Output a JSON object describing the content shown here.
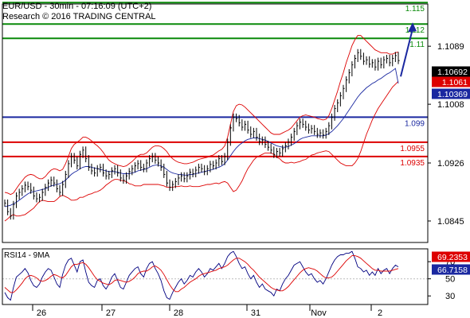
{
  "header": {
    "line1": "EUR/USD - 30min - 07:16:09 (UTC+2)",
    "line2": "Research © 2016 TRADING CENTRAL"
  },
  "colors": {
    "green": "#0a8a0a",
    "blue": "#1a28a0",
    "red": "#dd0000",
    "price": "#000000",
    "bollinger": "#dd0000",
    "ma": "#1a28a0",
    "rsi": "#000080",
    "rsi_ma": "#dd0000",
    "label_dark": "#000000",
    "label_red": "#dd0000",
    "label_blue": "#1a28a0"
  },
  "chart_data": {
    "type": "line",
    "title": "",
    "price_panel": {
      "ylim": [
        1.0815,
        1.1148
      ],
      "y_ticks": [
        1.0845,
        1.0926,
        1.1008,
        1.1089
      ],
      "levels": [
        {
          "value": 1.115,
          "label": "1.115",
          "color": "green"
        },
        {
          "value": 1.112,
          "label": "1.112",
          "color": "green"
        },
        {
          "value": 1.11,
          "label": "1.11",
          "color": "green"
        },
        {
          "value": 1.099,
          "label": "1.099",
          "color": "blue"
        },
        {
          "value": 1.0955,
          "label": "1.0955",
          "color": "red"
        },
        {
          "value": 1.0935,
          "label": "1.0935",
          "color": "red"
        }
      ],
      "current_labels": [
        {
          "value": 1.10692,
          "label": "1.10692",
          "style": "dark"
        },
        {
          "value": 1.1061,
          "label": "1.1061",
          "style": "red"
        },
        {
          "value": 1.10369,
          "label": "1.10369",
          "style": "blue"
        }
      ],
      "price": [
        1.087,
        1.0858,
        1.0852,
        1.0868,
        1.088,
        1.0885,
        1.089,
        1.0895,
        1.0893,
        1.0888,
        1.088,
        1.0876,
        1.0878,
        1.0885,
        1.0892,
        1.0898,
        1.0902,
        1.0898,
        1.089,
        1.0885,
        1.0896,
        1.091,
        1.0925,
        1.0935,
        1.093,
        1.0922,
        1.0938,
        1.0944,
        1.0932,
        1.092,
        1.0915,
        1.0912,
        1.0918,
        1.092,
        1.0912,
        1.0908,
        1.091,
        1.0915,
        1.0918,
        1.0912,
        1.0905,
        1.0902,
        1.0908,
        1.0914,
        1.0918,
        1.0922,
        1.0925,
        1.092,
        1.0918,
        1.0926,
        1.0932,
        1.0935,
        1.093,
        1.0926,
        1.092,
        1.091,
        1.0898,
        1.0892,
        1.0896,
        1.09,
        1.0905,
        1.0908,
        1.0904,
        1.0908,
        1.0913,
        1.0911,
        1.0916,
        1.092,
        1.0918,
        1.0914,
        1.0918,
        1.0924,
        1.0922,
        1.0926,
        1.0932,
        1.0928,
        1.0935,
        1.0955,
        1.0975,
        1.099,
        1.0988,
        1.0982,
        1.0976,
        1.098,
        1.0972,
        1.0966,
        1.097,
        1.0962,
        1.0956,
        1.0958,
        1.0952,
        1.0948,
        1.0944,
        1.0938,
        1.0942,
        1.094,
        1.0946,
        1.095,
        1.0955,
        1.0962,
        1.097,
        1.0978,
        1.0983,
        1.098,
        1.0976,
        1.0972,
        1.0974,
        1.097,
        1.0966,
        1.0968,
        1.0965,
        1.097,
        1.0978,
        1.099,
        1.1002,
        1.101,
        1.102,
        1.103,
        1.1042,
        1.1052,
        1.1063,
        1.1072,
        1.108,
        1.1075,
        1.1068,
        1.107,
        1.1064,
        1.1066,
        1.106,
        1.1068,
        1.1063,
        1.107,
        1.1072,
        1.1066,
        1.1072,
        1.1076,
        1.1069
      ],
      "projection": [
        [
          1.106,
          1.112
        ]
      ],
      "ma": [
        1.0865,
        1.0866,
        1.0867,
        1.0869,
        1.0871,
        1.0874,
        1.0877,
        1.088,
        1.0883,
        1.0885,
        1.0886,
        1.0887,
        1.0888,
        1.0889,
        1.089,
        1.0892,
        1.0894,
        1.0895,
        1.0896,
        1.0897,
        1.0899,
        1.0902,
        1.0906,
        1.091,
        1.0913,
        1.0915,
        1.0918,
        1.092,
        1.0921,
        1.0921,
        1.092,
        1.0919,
        1.0918,
        1.0917,
        1.0916,
        1.0915,
        1.0914,
        1.0914,
        1.0914,
        1.0913,
        1.0912,
        1.0911,
        1.0911,
        1.0911,
        1.0912,
        1.0913,
        1.0915,
        1.0916,
        1.0917,
        1.0918,
        1.092,
        1.0922,
        1.0923,
        1.0923,
        1.0922,
        1.092,
        1.0917,
        1.0914,
        1.0912,
        1.0911,
        1.091,
        1.091,
        1.0909,
        1.0909,
        1.091,
        1.091,
        1.0911,
        1.0912,
        1.0913,
        1.0914,
        1.0915,
        1.0916,
        1.0917,
        1.0919,
        1.092,
        1.0922,
        1.0925,
        1.093,
        1.0936,
        1.0942,
        1.0947,
        1.0951,
        1.0954,
        1.0957,
        1.0959,
        1.096,
        1.0961,
        1.0961,
        1.096,
        1.0959,
        1.0958,
        1.0956,
        1.0954,
        1.0952,
        1.095,
        1.0949,
        1.0948,
        1.0948,
        1.0949,
        1.0951,
        1.0953,
        1.0956,
        1.0959,
        1.0961,
        1.0962,
        1.0963,
        1.0964,
        1.0964,
        1.0964,
        1.0964,
        1.0964,
        1.0965,
        1.0967,
        1.097,
        1.0974,
        1.0978,
        1.0983,
        1.0988,
        1.0994,
        1.1,
        1.1006,
        1.1012,
        1.1018,
        1.1023,
        1.1027,
        1.1031,
        1.1034,
        1.1037,
        1.1039,
        1.1042,
        1.1044,
        1.1047,
        1.105,
        1.1052,
        1.1055,
        1.1058,
        1.1037
      ],
      "bb_upper": [
        1.0885,
        1.0884,
        1.0882,
        1.0884,
        1.089,
        1.0896,
        1.0901,
        1.0906,
        1.0909,
        1.091,
        1.0909,
        1.0906,
        1.0904,
        1.0904,
        1.0907,
        1.0912,
        1.0916,
        1.0918,
        1.0917,
        1.0915,
        1.0917,
        1.0925,
        1.0935,
        1.0946,
        1.0952,
        1.0955,
        1.0958,
        1.0962,
        1.0962,
        1.096,
        1.0957,
        1.0953,
        1.095,
        1.0946,
        1.0941,
        1.0935,
        1.093,
        1.0927,
        1.0925,
        1.0923,
        1.0922,
        1.0921,
        1.0922,
        1.0925,
        1.0928,
        1.0932,
        1.0936,
        1.0938,
        1.0938,
        1.094,
        1.0944,
        1.0948,
        1.095,
        1.095,
        1.0949,
        1.0946,
        1.0942,
        1.0936,
        1.0932,
        1.0929,
        1.0927,
        1.0926,
        1.0925,
        1.0925,
        1.0926,
        1.0927,
        1.0929,
        1.0931,
        1.0932,
        1.0933,
        1.0934,
        1.0936,
        1.0937,
        1.094,
        1.0943,
        1.0945,
        1.095,
        1.0962,
        1.098,
        1.0998,
        1.1006,
        1.1008,
        1.1007,
        1.1004,
        1.1,
        1.0996,
        1.0992,
        1.0988,
        1.0984,
        1.098,
        1.0976,
        1.0972,
        1.0968,
        1.0966,
        1.0966,
        1.0966,
        1.0968,
        1.097,
        1.0972,
        1.0975,
        1.098,
        1.0985,
        1.099,
        1.0992,
        1.0993,
        1.0992,
        1.0991,
        1.099,
        1.0988,
        1.0987,
        1.0986,
        1.0987,
        1.0992,
        1.1002,
        1.1014,
        1.1026,
        1.104,
        1.1052,
        1.1066,
        1.1078,
        1.109,
        1.1098,
        1.1104,
        1.1104,
        1.11,
        1.1096,
        1.1092,
        1.1088,
        1.1084,
        1.1082,
        1.108,
        1.108,
        1.108,
        1.1078,
        1.1078,
        1.108,
        1.1081
      ],
      "bb_lower": [
        1.0845,
        1.0848,
        1.0852,
        1.0854,
        1.0852,
        1.0852,
        1.0853,
        1.0854,
        1.0857,
        1.086,
        1.0863,
        1.0868,
        1.0872,
        1.0874,
        1.0873,
        1.0872,
        1.0872,
        1.0872,
        1.0875,
        1.0879,
        1.0881,
        1.0879,
        1.0877,
        1.0874,
        1.0874,
        1.0875,
        1.0878,
        1.0878,
        1.088,
        1.0882,
        1.0883,
        1.0885,
        1.0886,
        1.0888,
        1.0891,
        1.0895,
        1.0898,
        1.0901,
        1.0903,
        1.0903,
        1.0902,
        1.0901,
        1.09,
        1.0897,
        1.0896,
        1.0894,
        1.0894,
        1.0894,
        1.0896,
        1.0896,
        1.0896,
        1.0896,
        1.0896,
        1.0896,
        1.0895,
        1.0894,
        1.0892,
        1.0892,
        1.0892,
        1.0893,
        1.0893,
        1.0894,
        1.0893,
        1.0893,
        1.0894,
        1.0893,
        1.0893,
        1.0893,
        1.0894,
        1.0895,
        1.0896,
        1.0896,
        1.0897,
        1.0898,
        1.0897,
        1.0899,
        1.09,
        1.0898,
        1.0892,
        1.0886,
        1.0888,
        1.0894,
        1.0901,
        1.091,
        1.0918,
        1.0924,
        1.093,
        1.0934,
        1.0936,
        1.0938,
        1.094,
        1.094,
        1.094,
        1.0938,
        1.0934,
        1.0932,
        1.0928,
        1.0926,
        1.0926,
        1.0927,
        1.0926,
        1.0927,
        1.0928,
        1.093,
        1.0931,
        1.0934,
        1.0937,
        1.0938,
        1.094,
        1.0941,
        1.0942,
        1.0943,
        1.0942,
        1.0938,
        1.0934,
        1.093,
        1.0926,
        1.0924,
        1.0922,
        1.0922,
        1.0922,
        1.0926,
        1.0932,
        1.0942,
        1.0954,
        1.0966,
        1.0976,
        1.0986,
        1.0994,
        1.1002,
        1.1008,
        1.1014,
        1.102,
        1.1026,
        1.1032,
        1.1036,
        1.104
      ]
    },
    "rsi_panel": {
      "name": "RSI14 - 9MA",
      "ylim": [
        20,
        85
      ],
      "y_ticks": [
        30,
        50,
        70
      ],
      "current_labels": [
        {
          "value": 69.2353,
          "label": "69.2353",
          "style": "red"
        },
        {
          "value": 66.7158,
          "label": "66.7158",
          "style": "blue"
        }
      ],
      "rsi": [
        34,
        28,
        25,
        40,
        52,
        55,
        58,
        62,
        57,
        48,
        42,
        40,
        44,
        52,
        58,
        62,
        60,
        52,
        44,
        40,
        55,
        66,
        72,
        74,
        66,
        58,
        70,
        72,
        58,
        46,
        42,
        40,
        48,
        50,
        42,
        38,
        44,
        52,
        56,
        48,
        40,
        38,
        46,
        54,
        58,
        62,
        64,
        56,
        52,
        62,
        68,
        70,
        62,
        56,
        48,
        36,
        28,
        26,
        34,
        40,
        46,
        50,
        44,
        48,
        54,
        52,
        58,
        62,
        58,
        52,
        56,
        62,
        60,
        64,
        68,
        62,
        68,
        76,
        80,
        82,
        76,
        68,
        62,
        64,
        56,
        50,
        54,
        46,
        40,
        44,
        38,
        36,
        34,
        30,
        38,
        36,
        44,
        50,
        54,
        60,
        66,
        68,
        70,
        64,
        58,
        54,
        56,
        50,
        46,
        48,
        44,
        50,
        58,
        66,
        72,
        76,
        78,
        78,
        80,
        80,
        82,
        74,
        64,
        62,
        58,
        60,
        54,
        58,
        54,
        62,
        56,
        60,
        62,
        56,
        62,
        66,
        64
      ],
      "rsi_ma": [
        40,
        37,
        34,
        34,
        37,
        41,
        45,
        50,
        53,
        54,
        53,
        51,
        48,
        47,
        48,
        50,
        53,
        55,
        54,
        52,
        51,
        54,
        59,
        64,
        67,
        67,
        68,
        69,
        67,
        63,
        58,
        53,
        49,
        47,
        45,
        44,
        43,
        45,
        48,
        49,
        48,
        47,
        46,
        47,
        49,
        52,
        56,
        58,
        59,
        59,
        61,
        64,
        65,
        63,
        60,
        55,
        49,
        43,
        38,
        35,
        35,
        38,
        40,
        43,
        46,
        48,
        50,
        53,
        55,
        56,
        57,
        58,
        59,
        60,
        62,
        63,
        64,
        66,
        69,
        72,
        74,
        74,
        72,
        70,
        67,
        63,
        60,
        56,
        52,
        49,
        46,
        43,
        40,
        38,
        37,
        36,
        36,
        38,
        41,
        45,
        49,
        53,
        57,
        60,
        62,
        63,
        62,
        61,
        59,
        56,
        53,
        51,
        51,
        52,
        55,
        59,
        63,
        67,
        71,
        74,
        77,
        77,
        76,
        74,
        71,
        68,
        65,
        62,
        60,
        60,
        59,
        59,
        59,
        59,
        60,
        61,
        62
      ]
    },
    "x_ticks": [
      {
        "label": "26",
        "index": 6
      },
      {
        "label": "27",
        "index": 23
      },
      {
        "label": "28",
        "index": 40
      },
      {
        "label": "31",
        "index": 58
      },
      {
        "label": "Nov",
        "index": 77
      },
      {
        "label": "2",
        "index": 94
      }
    ],
    "x_count": 137,
    "x_ticks_pos": [
      46,
      133,
      218,
      315,
      394,
      471
    ]
  }
}
